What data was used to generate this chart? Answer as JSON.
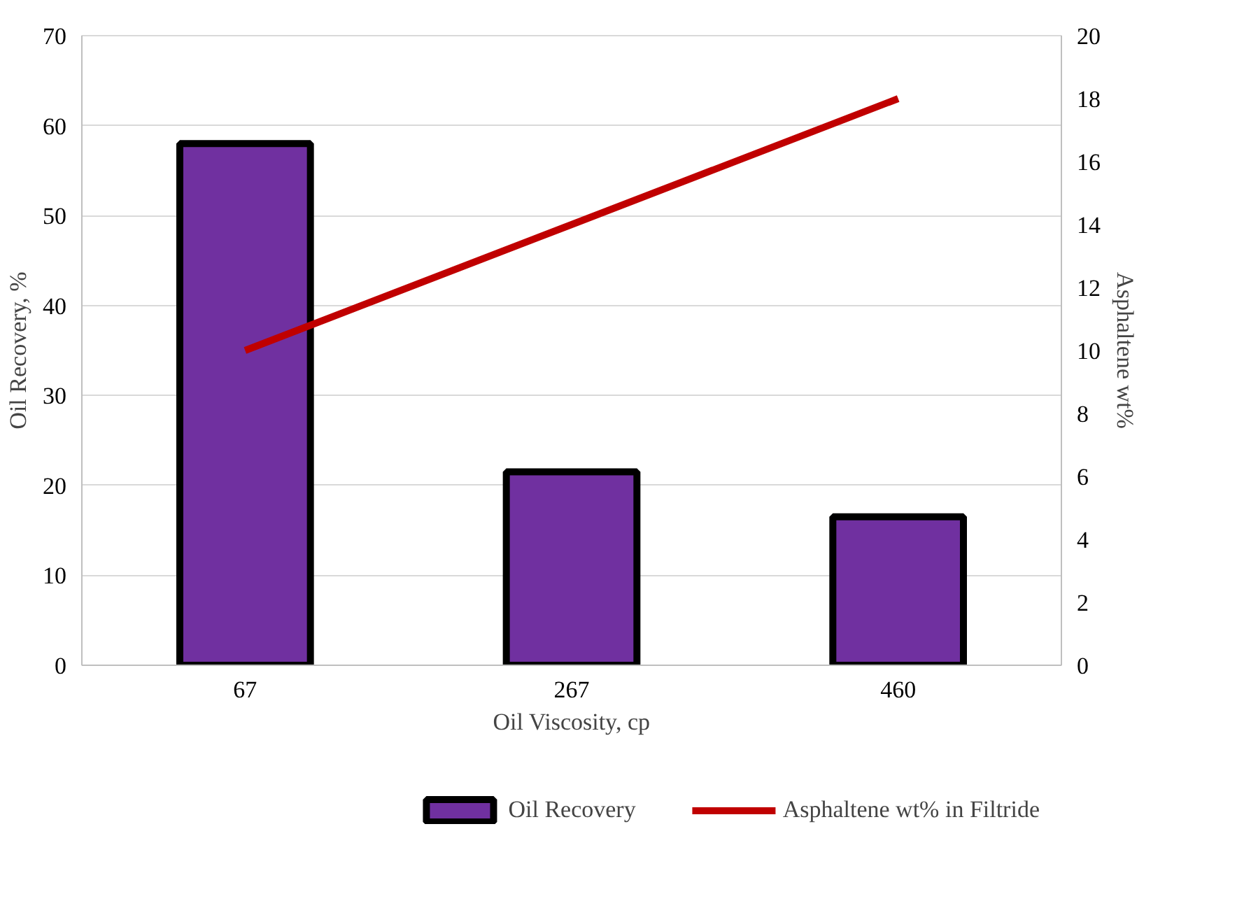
{
  "chart_data": {
    "type": "bar",
    "xlabel": "Oil Viscosity, cp",
    "ylabel": "Oil Recovery, %",
    "y2label": "Asphaltene wt%",
    "categories": [
      "67",
      "267",
      "460"
    ],
    "series": [
      {
        "name": "Oil Recovery",
        "color": "#7030a0",
        "values": [
          58,
          21.5,
          16.5
        ]
      },
      {
        "name": "Asphaltene wt% in Filtride",
        "type": "line",
        "axis": "y2",
        "color": "#c00000",
        "values": [
          10,
          14,
          18
        ]
      }
    ],
    "ylim": [
      0,
      70
    ],
    "yticks": [
      0,
      10,
      20,
      30,
      40,
      50,
      60,
      70
    ],
    "y2lim": [
      0,
      20
    ],
    "y2ticks": [
      0,
      2,
      4,
      6,
      8,
      10,
      12,
      14,
      16,
      18,
      20
    ],
    "grid": "y",
    "legend": "bottom",
    "line_style": "solid",
    "marker": "none"
  }
}
